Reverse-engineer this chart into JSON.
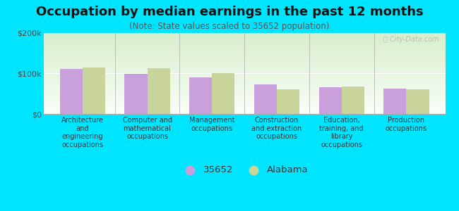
{
  "title": "Occupation by median earnings in the past 12 months",
  "subtitle": "(Note: State values scaled to 35652 population)",
  "categories": [
    "Architecture\nand\nengineering\noccupations",
    "Computer and\nmathematical\noccupations",
    "Management\noccupations",
    "Construction\nand extraction\noccupations",
    "Education,\ntraining, and\nlibrary\noccupations",
    "Production\noccupations"
  ],
  "values_35652": [
    110000,
    98000,
    90000,
    72000,
    65000,
    63000
  ],
  "values_alabama": [
    115000,
    113000,
    101000,
    60000,
    68000,
    60000
  ],
  "bar_color_35652": "#c9a0dc",
  "bar_color_alabama": "#c8d49a",
  "background_color": "#00e5ff",
  "gradient_top": "#d8eecc",
  "gradient_bottom": "#f8fff8",
  "ylim": [
    0,
    200000
  ],
  "ytick_labels": [
    "$0",
    "$100k",
    "$200k"
  ],
  "legend_label_1": "35652",
  "legend_label_2": "Alabama",
  "bar_width": 0.35,
  "title_fontsize": 13,
  "subtitle_fontsize": 8.5,
  "tick_fontsize": 8,
  "legend_fontsize": 9.5
}
